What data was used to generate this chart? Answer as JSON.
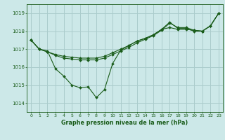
{
  "title": "Graphe pression niveau de la mer (hPa)",
  "background_color": "#cce8e8",
  "grid_color": "#aacccc",
  "line_color": "#1a5c1a",
  "x_ticks": [
    0,
    1,
    2,
    3,
    4,
    5,
    6,
    7,
    8,
    9,
    10,
    11,
    12,
    13,
    14,
    15,
    16,
    17,
    18,
    19,
    20,
    21,
    22,
    23
  ],
  "ylim": [
    1013.5,
    1019.5
  ],
  "yticks": [
    1014,
    1015,
    1016,
    1017,
    1018,
    1019
  ],
  "line1": [
    1017.5,
    1017.0,
    1016.9,
    1015.9,
    1015.5,
    1015.0,
    1014.85,
    1014.9,
    1014.3,
    1014.75,
    1016.2,
    1016.95,
    1017.2,
    1017.45,
    1017.6,
    1017.8,
    1018.1,
    1018.5,
    1018.15,
    1018.15,
    1018.0,
    1018.0,
    1018.3,
    1019.0
  ],
  "line2": [
    1017.5,
    1017.0,
    1016.85,
    1016.65,
    1016.5,
    1016.45,
    1016.4,
    1016.4,
    1016.4,
    1016.5,
    1016.7,
    1016.9,
    1017.1,
    1017.35,
    1017.55,
    1017.75,
    1018.05,
    1018.45,
    1018.2,
    1018.2,
    1018.05,
    1018.0,
    1018.3,
    1019.0
  ],
  "line3": [
    1017.5,
    1017.0,
    1016.85,
    1016.7,
    1016.6,
    1016.55,
    1016.5,
    1016.5,
    1016.5,
    1016.6,
    1016.8,
    1017.0,
    1017.2,
    1017.45,
    1017.6,
    1017.8,
    1018.1,
    1018.2,
    1018.1,
    1018.1,
    1018.05,
    1018.0,
    1018.3,
    1019.0
  ],
  "figsize": [
    3.2,
    2.0
  ],
  "dpi": 100
}
